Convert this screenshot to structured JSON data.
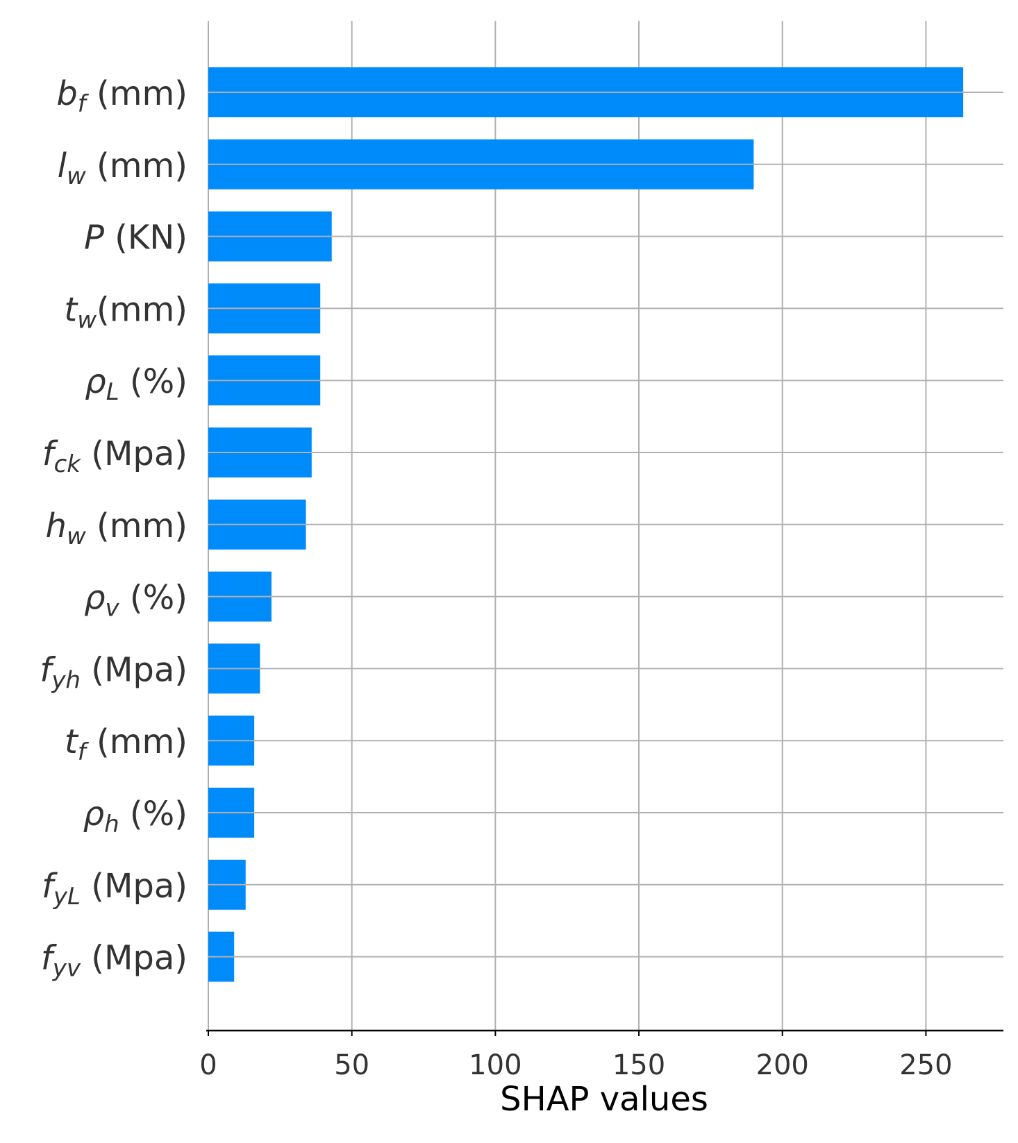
{
  "chart_data": {
    "type": "bar",
    "orientation": "horizontal",
    "title": "",
    "xlabel": "SHAP values",
    "ylabel": "",
    "xlim": [
      0,
      277
    ],
    "xticks": [
      "0",
      "50",
      "100",
      "150",
      "200",
      "250"
    ],
    "grid": true,
    "categories": [
      {
        "label": "bf (mm)",
        "sym": "b",
        "sub": "f",
        "unit": " (mm)"
      },
      {
        "label": "lw (mm)",
        "sym": "l",
        "sub": "w",
        "unit": " (mm)"
      },
      {
        "label": "P  (KN)",
        "sym": "P",
        "sub": "",
        "unit": "  (KN)"
      },
      {
        "label": "tw(mm)",
        "sym": "t",
        "sub": "w",
        "unit": "(mm)"
      },
      {
        "label": "ρL (%)",
        "sym": "ρ",
        "sub": "L",
        "unit": " (%)"
      },
      {
        "label": "fck (Mpa)",
        "sym": "f",
        "sub": "ck",
        "unit": " (Mpa)"
      },
      {
        "label": "hw (mm)",
        "sym": "h",
        "sub": "w",
        "unit": " (mm)"
      },
      {
        "label": "ρv (%)",
        "sym": "ρ",
        "sub": "v",
        "unit": " (%)"
      },
      {
        "label": "fyh (Mpa)",
        "sym": "f",
        "sub": "yh",
        "unit": " (Mpa)"
      },
      {
        "label": "tf (mm)",
        "sym": "t",
        "sub": "f",
        "unit": " (mm)"
      },
      {
        "label": "ρh (%)",
        "sym": "ρ",
        "sub": "h",
        "unit": " (%)"
      },
      {
        "label": "fyL (Mpa)",
        "sym": "f",
        "sub": "yL",
        "unit": " (Mpa)"
      },
      {
        "label": "fyv (Mpa)",
        "sym": "f",
        "sub": "yv",
        "unit": " (Mpa)"
      }
    ],
    "values": [
      263,
      190,
      43,
      39,
      39,
      36,
      34,
      22,
      18,
      16,
      16,
      13,
      9
    ],
    "colors": {
      "bar": "#008bfb",
      "grid": "#b0b0b0",
      "axis": "#000000",
      "text": "#333333"
    }
  }
}
